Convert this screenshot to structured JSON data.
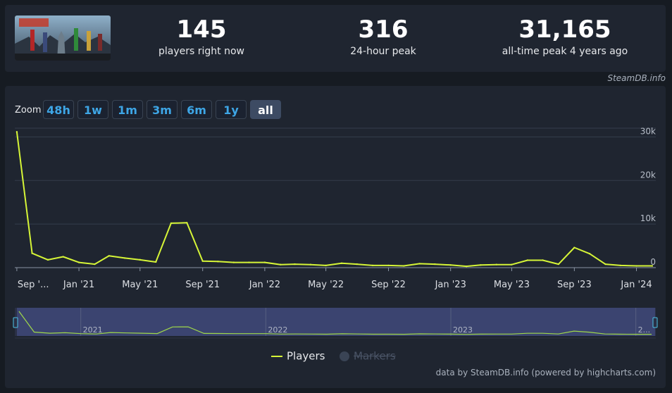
{
  "stats": [
    {
      "value": "145",
      "label": "players right now"
    },
    {
      "value": "316",
      "label": "24-hour peak"
    },
    {
      "value": "31,165",
      "label": "all-time peak 4 years ago"
    }
  ],
  "credit_top": "SteamDB.info",
  "zoom": {
    "label": "Zoom",
    "buttons": [
      "48h",
      "1w",
      "1m",
      "3m",
      "6m",
      "1y",
      "all"
    ],
    "active": "all"
  },
  "legend": {
    "players": "Players",
    "markers": "Markers"
  },
  "credit_bottom": "data by SteamDB.info (powered by highcharts.com)",
  "colors": {
    "line": "#d6f537",
    "background": "#1f2530",
    "navigator": "#3b4470",
    "button_text": "#3ea6e6"
  },
  "navigator_labels": [
    "2021",
    "2022",
    "2023",
    "2..."
  ],
  "chart_data": {
    "type": "line",
    "x_tick_labels": [
      "Sep '...",
      "Jan '21",
      "May '21",
      "Sep '21",
      "Jan '22",
      "May '22",
      "Sep '22",
      "Jan '23",
      "May '23",
      "Sep '23",
      "Jan '24"
    ],
    "y_tick_labels": [
      "0",
      "10k",
      "20k",
      "30k"
    ],
    "ylim": [
      0,
      30000
    ],
    "grid": true,
    "legend_position": "bottom",
    "series": [
      {
        "name": "Players",
        "x": [
          "2020-09-01",
          "2020-10-01",
          "2020-11-01",
          "2020-12-01",
          "2021-01-01",
          "2021-02-01",
          "2021-03-01",
          "2021-04-01",
          "2021-05-01",
          "2021-06-01",
          "2021-07-01",
          "2021-08-01",
          "2021-09-01",
          "2021-10-01",
          "2021-11-01",
          "2021-12-01",
          "2022-01-01",
          "2022-02-01",
          "2022-03-01",
          "2022-04-01",
          "2022-05-01",
          "2022-06-01",
          "2022-07-01",
          "2022-08-01",
          "2022-09-01",
          "2022-10-01",
          "2022-11-01",
          "2022-12-01",
          "2023-01-01",
          "2023-02-01",
          "2023-03-01",
          "2023-04-01",
          "2023-05-01",
          "2023-06-01",
          "2023-07-01",
          "2023-08-01",
          "2023-09-01",
          "2023-10-01",
          "2023-11-01",
          "2023-12-01",
          "2024-01-01",
          "2024-02-01"
        ],
        "values": [
          31165,
          3300,
          1800,
          2500,
          1200,
          800,
          2700,
          2200,
          1800,
          1300,
          10200,
          10300,
          1500,
          1400,
          1200,
          1200,
          1200,
          700,
          800,
          700,
          500,
          1000,
          800,
          500,
          500,
          400,
          900,
          800,
          600,
          300,
          600,
          700,
          700,
          1700,
          1700,
          800,
          4600,
          3200,
          800,
          500,
          400,
          400
        ]
      }
    ]
  }
}
